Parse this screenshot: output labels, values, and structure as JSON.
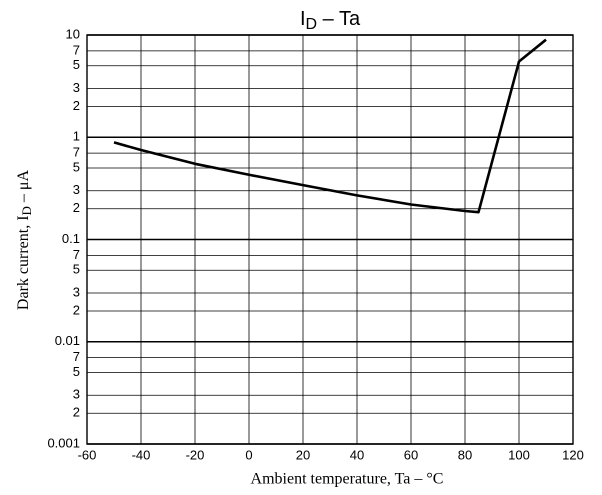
{
  "chart_data": {
    "type": "line",
    "title": {
      "text": "I",
      "subscript": "D",
      "suffix": " – Ta"
    },
    "x_label": "Ambient temperature, Ta – °C",
    "y_label": {
      "text": "Dark current, I",
      "subscript": "D",
      "suffix": " – μA"
    },
    "x": [
      -50,
      -40,
      -20,
      0,
      20,
      40,
      60,
      80,
      85,
      100,
      110
    ],
    "values": [
      0.89,
      0.75,
      0.55,
      0.43,
      0.34,
      0.27,
      0.22,
      0.19,
      0.185,
      5.5,
      9
    ],
    "color": "#000000",
    "xlim": [
      -60,
      120
    ],
    "xticks": [
      -60,
      -40,
      -20,
      0,
      20,
      40,
      60,
      80,
      100,
      120
    ],
    "ylim": [
      0.001,
      10
    ],
    "y_scale": "log",
    "yticks": [
      10,
      7,
      5,
      3,
      2,
      1,
      {
        "value": 0.7,
        "label": "7"
      },
      {
        "value": 0.5,
        "label": "5"
      },
      {
        "value": 0.3,
        "label": "3"
      },
      {
        "value": 0.2,
        "label": "2"
      },
      0.1,
      {
        "value": 0.07,
        "label": "7"
      },
      {
        "value": 0.05,
        "label": "5"
      },
      {
        "value": 0.03,
        "label": "3"
      },
      {
        "value": 0.02,
        "label": "2"
      },
      0.01,
      {
        "value": 0.007,
        "label": "7"
      },
      {
        "value": 0.005,
        "label": "5"
      },
      {
        "value": 0.003,
        "label": "3"
      },
      {
        "value": 0.002,
        "label": "2"
      },
      0.001
    ],
    "grid": true
  }
}
